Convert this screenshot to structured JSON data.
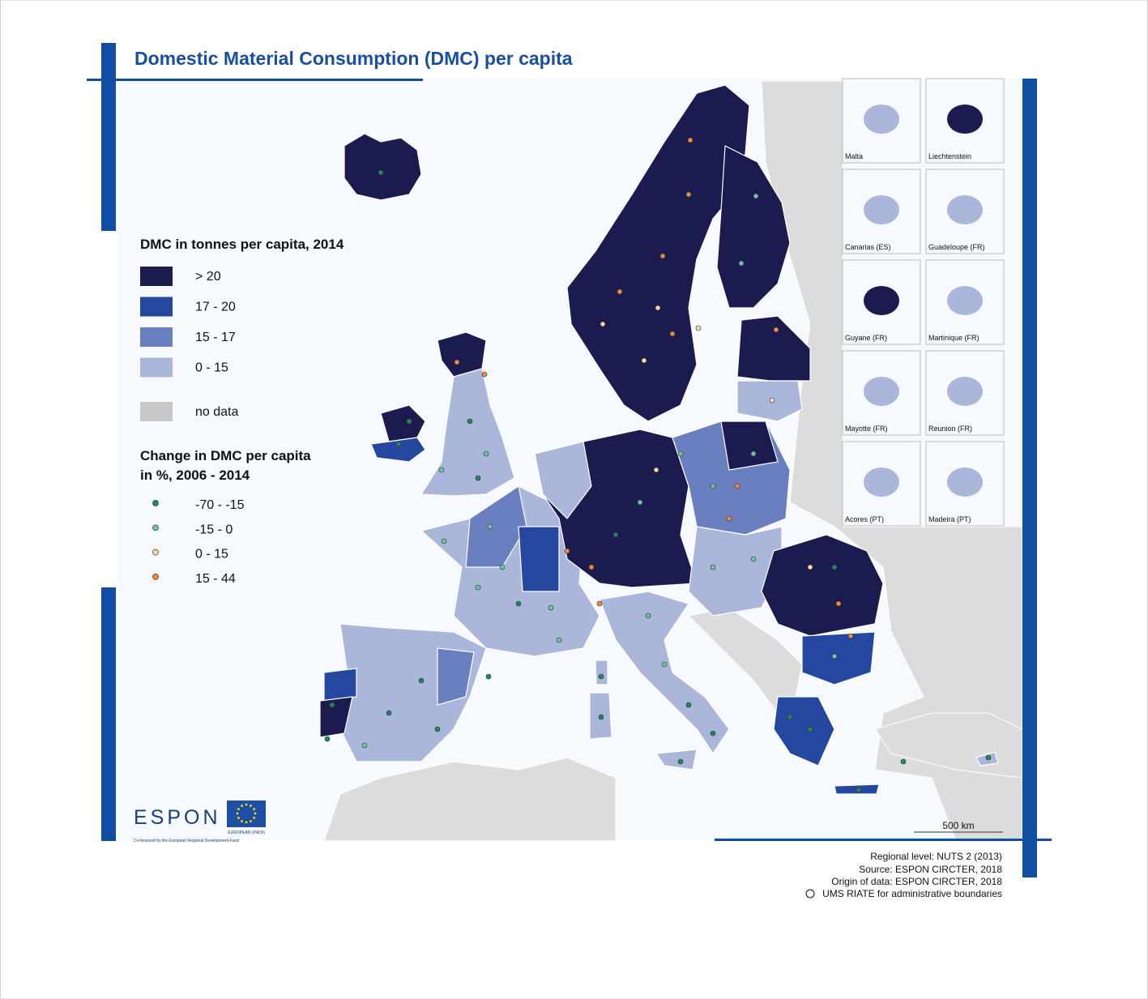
{
  "title": "Domestic Material Consumption (DMC) per capita",
  "legend": {
    "fill_title": "DMC in tonnes per capita, 2014",
    "fill_classes": [
      {
        "label": "> 20",
        "color": "#1b1b4f"
      },
      {
        "label": "17 - 20",
        "color": "#2647a0"
      },
      {
        "label": "15 - 17",
        "color": "#6a7fc0"
      },
      {
        "label": "0 - 15",
        "color": "#aab6da"
      }
    ],
    "no_data": {
      "label": "no data",
      "color": "#c8c8c8"
    },
    "dot_title": [
      "Change in DMC per capita",
      "in %, 2006 - 2014"
    ],
    "dot_classes": [
      {
        "label": "-70 - -15",
        "color": "#1e8a5e"
      },
      {
        "label": "-15 - 0",
        "color": "#6cc6a2"
      },
      {
        "label": "0 - 15",
        "color": "#f7d9a8"
      },
      {
        "label": "15 - 44",
        "color": "#f08a3c"
      }
    ]
  },
  "insets": [
    "Malta",
    "Liechtenstein",
    "Canarias (ES)",
    "Guadeloupe (FR)",
    "Guyane (FR)",
    "Martinique (FR)",
    "Mayotte (FR)",
    "Reunion (FR)",
    "Acores (PT)",
    "Madeira (PT)"
  ],
  "scale_bar": "500 km",
  "notes": [
    "Regional level: NUTS 2 (2013)",
    "Source: ESPON CIRCTER, 2018",
    "Origin of data: ESPON CIRCTER, 2018",
    "UMS RIATE for administrative boundaries"
  ],
  "logo": {
    "espon": "ESPON",
    "eu": "EUROPEAN UNION",
    "cofinanced": "Co-financed by the European Regional Development Fund"
  }
}
